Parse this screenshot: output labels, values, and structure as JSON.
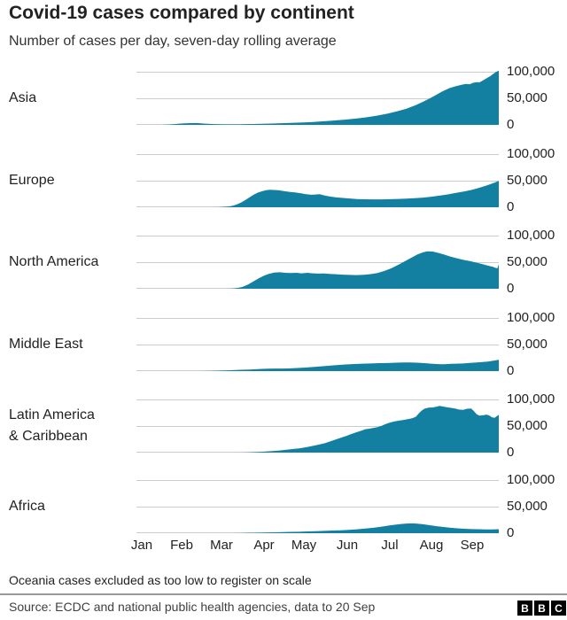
{
  "header": {
    "title": "Covid-19 cases compared by continent",
    "subtitle": "Number of cases per day, seven-day rolling average"
  },
  "rows": [
    {
      "label_lines": [
        "Asia"
      ]
    },
    {
      "label_lines": [
        "Europe"
      ]
    },
    {
      "label_lines": [
        "North America"
      ]
    },
    {
      "label_lines": [
        "Middle East"
      ]
    },
    {
      "label_lines": [
        "Latin America",
        "& Caribbean"
      ]
    },
    {
      "label_lines": [
        "Africa"
      ]
    }
  ],
  "axis": {
    "ticks": [
      "100,000",
      "50,000",
      "0"
    ],
    "months": [
      "Jan",
      "Feb",
      "Mar",
      "Apr",
      "May",
      "Jun",
      "Jul",
      "Aug",
      "Sep"
    ]
  },
  "footer": {
    "note": "Oceania cases excluded as too low to register on scale",
    "source": "Source: ECDC and national public health agencies, data to 20 Sep",
    "logo_letters": [
      "B",
      "B",
      "C"
    ]
  },
  "chart_data": {
    "type": "area",
    "title": "Covid-19 cases compared by continent",
    "subtitle": "Number of cases per day, seven-day rolling average",
    "ylabel": "Cases per day (seven-day rolling average)",
    "ylim": [
      0,
      100000
    ],
    "gridlines": [
      0,
      50000,
      100000
    ],
    "fill_color": "#1380A1",
    "grid_color": "#cccccc",
    "x_axis": {
      "unit": "day_of_year_2020",
      "x_max_day": 263,
      "months": [
        "Jan",
        "Feb",
        "Mar",
        "Apr",
        "May",
        "Jun",
        "Jul",
        "Aug",
        "Sep"
      ],
      "data_to": "20 Sep"
    },
    "series": [
      {
        "name": "Asia",
        "key": "asia",
        "points": [
          [
            0,
            0
          ],
          [
            14,
            0
          ],
          [
            19,
            100
          ],
          [
            24,
            600
          ],
          [
            28,
            1500
          ],
          [
            31,
            2300
          ],
          [
            35,
            3000
          ],
          [
            39,
            3400
          ],
          [
            44,
            3600
          ],
          [
            47,
            3000
          ],
          [
            50,
            2200
          ],
          [
            55,
            1600
          ],
          [
            60,
            1200
          ],
          [
            67,
            1000
          ],
          [
            74,
            1100
          ],
          [
            80,
            1400
          ],
          [
            85,
            1700
          ],
          [
            91,
            2100
          ],
          [
            98,
            2600
          ],
          [
            105,
            3100
          ],
          [
            112,
            3700
          ],
          [
            121,
            4600
          ],
          [
            128,
            5500
          ],
          [
            135,
            6600
          ],
          [
            142,
            8000
          ],
          [
            152,
            10000
          ],
          [
            160,
            12000
          ],
          [
            166,
            14000
          ],
          [
            174,
            17000
          ],
          [
            182,
            21000
          ],
          [
            189,
            25500
          ],
          [
            196,
            30500
          ],
          [
            203,
            37500
          ],
          [
            208,
            43500
          ],
          [
            213,
            50000
          ],
          [
            218,
            57000
          ],
          [
            222,
            63000
          ],
          [
            227,
            69000
          ],
          [
            232,
            73000
          ],
          [
            236,
            75500
          ],
          [
            239,
            77000
          ],
          [
            242,
            76500
          ],
          [
            244,
            79000
          ],
          [
            247,
            80500
          ],
          [
            249,
            80000
          ],
          [
            251,
            83000
          ],
          [
            254,
            87500
          ],
          [
            257,
            92000
          ],
          [
            259,
            96000
          ],
          [
            261,
            99500
          ],
          [
            263,
            102000
          ]
        ]
      },
      {
        "name": "Europe",
        "key": "europe",
        "points": [
          [
            0,
            0
          ],
          [
            55,
            0
          ],
          [
            60,
            300
          ],
          [
            64,
            800
          ],
          [
            67,
            1500
          ],
          [
            70,
            3000
          ],
          [
            73,
            5500
          ],
          [
            76,
            9000
          ],
          [
            79,
            13500
          ],
          [
            82,
            18500
          ],
          [
            85,
            23500
          ],
          [
            88,
            27500
          ],
          [
            91,
            30000
          ],
          [
            94,
            32000
          ],
          [
            97,
            33000
          ],
          [
            100,
            32500
          ],
          [
            103,
            32000
          ],
          [
            107,
            30500
          ],
          [
            111,
            29000
          ],
          [
            115,
            28000
          ],
          [
            119,
            26500
          ],
          [
            123,
            24500
          ],
          [
            127,
            23500
          ],
          [
            130,
            24000
          ],
          [
            133,
            24500
          ],
          [
            136,
            22500
          ],
          [
            140,
            20500
          ],
          [
            145,
            18500
          ],
          [
            150,
            17500
          ],
          [
            155,
            16500
          ],
          [
            160,
            15500
          ],
          [
            166,
            15000
          ],
          [
            172,
            14700
          ],
          [
            178,
            14800
          ],
          [
            184,
            15200
          ],
          [
            190,
            15600
          ],
          [
            196,
            16200
          ],
          [
            202,
            17000
          ],
          [
            208,
            18200
          ],
          [
            214,
            19800
          ],
          [
            220,
            21800
          ],
          [
            226,
            24200
          ],
          [
            232,
            27000
          ],
          [
            238,
            29800
          ],
          [
            243,
            32500
          ],
          [
            248,
            36000
          ],
          [
            253,
            40000
          ],
          [
            257,
            43500
          ],
          [
            260,
            46500
          ],
          [
            263,
            49500
          ]
        ]
      },
      {
        "name": "North America",
        "key": "north-america",
        "points": [
          [
            0,
            0
          ],
          [
            64,
            0
          ],
          [
            69,
            300
          ],
          [
            73,
            1200
          ],
          [
            77,
            3500
          ],
          [
            81,
            8000
          ],
          [
            85,
            14000
          ],
          [
            89,
            20000
          ],
          [
            93,
            25000
          ],
          [
            96,
            28000
          ],
          [
            100,
            30500
          ],
          [
            104,
            31000
          ],
          [
            108,
            30000
          ],
          [
            112,
            29500
          ],
          [
            116,
            30000
          ],
          [
            120,
            29000
          ],
          [
            124,
            30000
          ],
          [
            128,
            29000
          ],
          [
            132,
            28500
          ],
          [
            136,
            28800
          ],
          [
            140,
            28000
          ],
          [
            145,
            27200
          ],
          [
            150,
            26500
          ],
          [
            155,
            26000
          ],
          [
            160,
            25600
          ],
          [
            165,
            26200
          ],
          [
            170,
            27500
          ],
          [
            175,
            29500
          ],
          [
            180,
            33500
          ],
          [
            185,
            38500
          ],
          [
            190,
            45000
          ],
          [
            195,
            52000
          ],
          [
            200,
            59000
          ],
          [
            204,
            64500
          ],
          [
            208,
            68500
          ],
          [
            211,
            70500
          ],
          [
            215,
            70000
          ],
          [
            219,
            67500
          ],
          [
            223,
            64500
          ],
          [
            228,
            60500
          ],
          [
            233,
            57000
          ],
          [
            238,
            54000
          ],
          [
            242,
            52000
          ],
          [
            246,
            49500
          ],
          [
            250,
            47000
          ],
          [
            253,
            45000
          ],
          [
            256,
            43000
          ],
          [
            259,
            41000
          ],
          [
            261,
            39000
          ],
          [
            262,
            38500
          ],
          [
            263,
            46000
          ]
        ]
      },
      {
        "name": "Middle East",
        "key": "middle-east",
        "points": [
          [
            0,
            0
          ],
          [
            45,
            0
          ],
          [
            52,
            200
          ],
          [
            58,
            600
          ],
          [
            64,
            1200
          ],
          [
            70,
            1900
          ],
          [
            76,
            2500
          ],
          [
            82,
            2900
          ],
          [
            88,
            3700
          ],
          [
            91,
            4200
          ],
          [
            95,
            4500
          ],
          [
            100,
            4700
          ],
          [
            105,
            4800
          ],
          [
            110,
            5100
          ],
          [
            115,
            5600
          ],
          [
            121,
            6500
          ],
          [
            127,
            7400
          ],
          [
            133,
            8700
          ],
          [
            139,
            10000
          ],
          [
            145,
            11200
          ],
          [
            152,
            12500
          ],
          [
            158,
            13400
          ],
          [
            164,
            13900
          ],
          [
            170,
            14400
          ],
          [
            176,
            15000
          ],
          [
            182,
            15300
          ],
          [
            188,
            15800
          ],
          [
            194,
            16200
          ],
          [
            199,
            16300
          ],
          [
            204,
            15800
          ],
          [
            209,
            15000
          ],
          [
            214,
            14000
          ],
          [
            219,
            13200
          ],
          [
            223,
            13000
          ],
          [
            227,
            13600
          ],
          [
            232,
            14000
          ],
          [
            237,
            14400
          ],
          [
            242,
            15400
          ],
          [
            247,
            16300
          ],
          [
            251,
            17000
          ],
          [
            255,
            18000
          ],
          [
            258,
            19200
          ],
          [
            261,
            20500
          ],
          [
            263,
            21500
          ]
        ]
      },
      {
        "name": "Latin America & Caribbean",
        "key": "latin-america",
        "points": [
          [
            0,
            0
          ],
          [
            74,
            0
          ],
          [
            79,
            300
          ],
          [
            84,
            700
          ],
          [
            89,
            1300
          ],
          [
            94,
            2100
          ],
          [
            99,
            3000
          ],
          [
            104,
            4000
          ],
          [
            109,
            5400
          ],
          [
            114,
            6800
          ],
          [
            118,
            8000
          ],
          [
            121,
            9200
          ],
          [
            125,
            11000
          ],
          [
            129,
            13200
          ],
          [
            133,
            15500
          ],
          [
            137,
            18000
          ],
          [
            141,
            21500
          ],
          [
            145,
            25000
          ],
          [
            149,
            28500
          ],
          [
            152,
            31000
          ],
          [
            156,
            35000
          ],
          [
            160,
            38500
          ],
          [
            163,
            41000
          ],
          [
            166,
            44000
          ],
          [
            169,
            45000
          ],
          [
            172,
            46500
          ],
          [
            175,
            48000
          ],
          [
            178,
            50500
          ],
          [
            181,
            54000
          ],
          [
            184,
            56500
          ],
          [
            187,
            58500
          ],
          [
            190,
            60000
          ],
          [
            193,
            61000
          ],
          [
            196,
            62500
          ],
          [
            199,
            64000
          ],
          [
            201,
            65500
          ],
          [
            203,
            68000
          ],
          [
            205,
            74000
          ],
          [
            207,
            79000
          ],
          [
            209,
            82500
          ],
          [
            212,
            84500
          ],
          [
            215,
            85000
          ],
          [
            218,
            86500
          ],
          [
            220,
            88000
          ],
          [
            223,
            86500
          ],
          [
            226,
            85000
          ],
          [
            229,
            84000
          ],
          [
            232,
            82500
          ],
          [
            234,
            81000
          ],
          [
            237,
            80500
          ],
          [
            240,
            82500
          ],
          [
            243,
            83000
          ],
          [
            245,
            78000
          ],
          [
            247,
            72000
          ],
          [
            249,
            69500
          ],
          [
            252,
            70500
          ],
          [
            254,
            71500
          ],
          [
            256,
            70000
          ],
          [
            258,
            66500
          ],
          [
            260,
            65500
          ],
          [
            261,
            67500
          ],
          [
            263,
            71000
          ]
        ]
      },
      {
        "name": "Africa",
        "key": "africa",
        "points": [
          [
            0,
            0
          ],
          [
            70,
            0
          ],
          [
            76,
            300
          ],
          [
            82,
            600
          ],
          [
            88,
            900
          ],
          [
            94,
            1200
          ],
          [
            100,
            1600
          ],
          [
            106,
            2000
          ],
          [
            112,
            2400
          ],
          [
            118,
            2800
          ],
          [
            124,
            3300
          ],
          [
            130,
            3800
          ],
          [
            136,
            4300
          ],
          [
            142,
            4900
          ],
          [
            148,
            5500
          ],
          [
            154,
            6300
          ],
          [
            160,
            7300
          ],
          [
            166,
            8700
          ],
          [
            172,
            10300
          ],
          [
            178,
            12300
          ],
          [
            183,
            14300
          ],
          [
            188,
            16000
          ],
          [
            192,
            17300
          ],
          [
            196,
            18200
          ],
          [
            200,
            18500
          ],
          [
            204,
            18000
          ],
          [
            208,
            16800
          ],
          [
            213,
            15000
          ],
          [
            218,
            13200
          ],
          [
            223,
            11600
          ],
          [
            228,
            10200
          ],
          [
            233,
            9200
          ],
          [
            238,
            8400
          ],
          [
            243,
            7800
          ],
          [
            248,
            7400
          ],
          [
            253,
            7100
          ],
          [
            258,
            7000
          ],
          [
            263,
            7500
          ]
        ]
      }
    ]
  }
}
